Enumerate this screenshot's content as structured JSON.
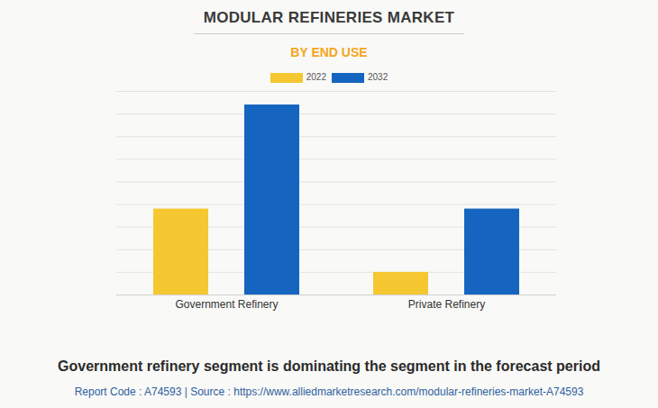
{
  "chart_data": {
    "type": "bar",
    "title": "MODULAR REFINERIES MARKET",
    "subtitle": "BY END USE",
    "caption": "Government refinery segment is dominating the segment in the forecast period",
    "source": "Report Code : A74593  |  Source : https://www.alliedmarketresearch.com/modular-refineries-market-A74593",
    "categories": [
      "Government Refinery",
      "Private Refinery"
    ],
    "series": [
      {
        "name": "2022",
        "color": "#f5c832",
        "values": [
          3.8,
          1.0
        ]
      },
      {
        "name": "2032",
        "color": "#1565c0",
        "values": [
          8.4,
          3.8
        ]
      }
    ],
    "ylim": [
      0,
      9
    ],
    "yticks": [
      0,
      1,
      2,
      3,
      4,
      5,
      6,
      7,
      8,
      9
    ],
    "grid": true,
    "legend": "top",
    "tick_labels": "x"
  }
}
